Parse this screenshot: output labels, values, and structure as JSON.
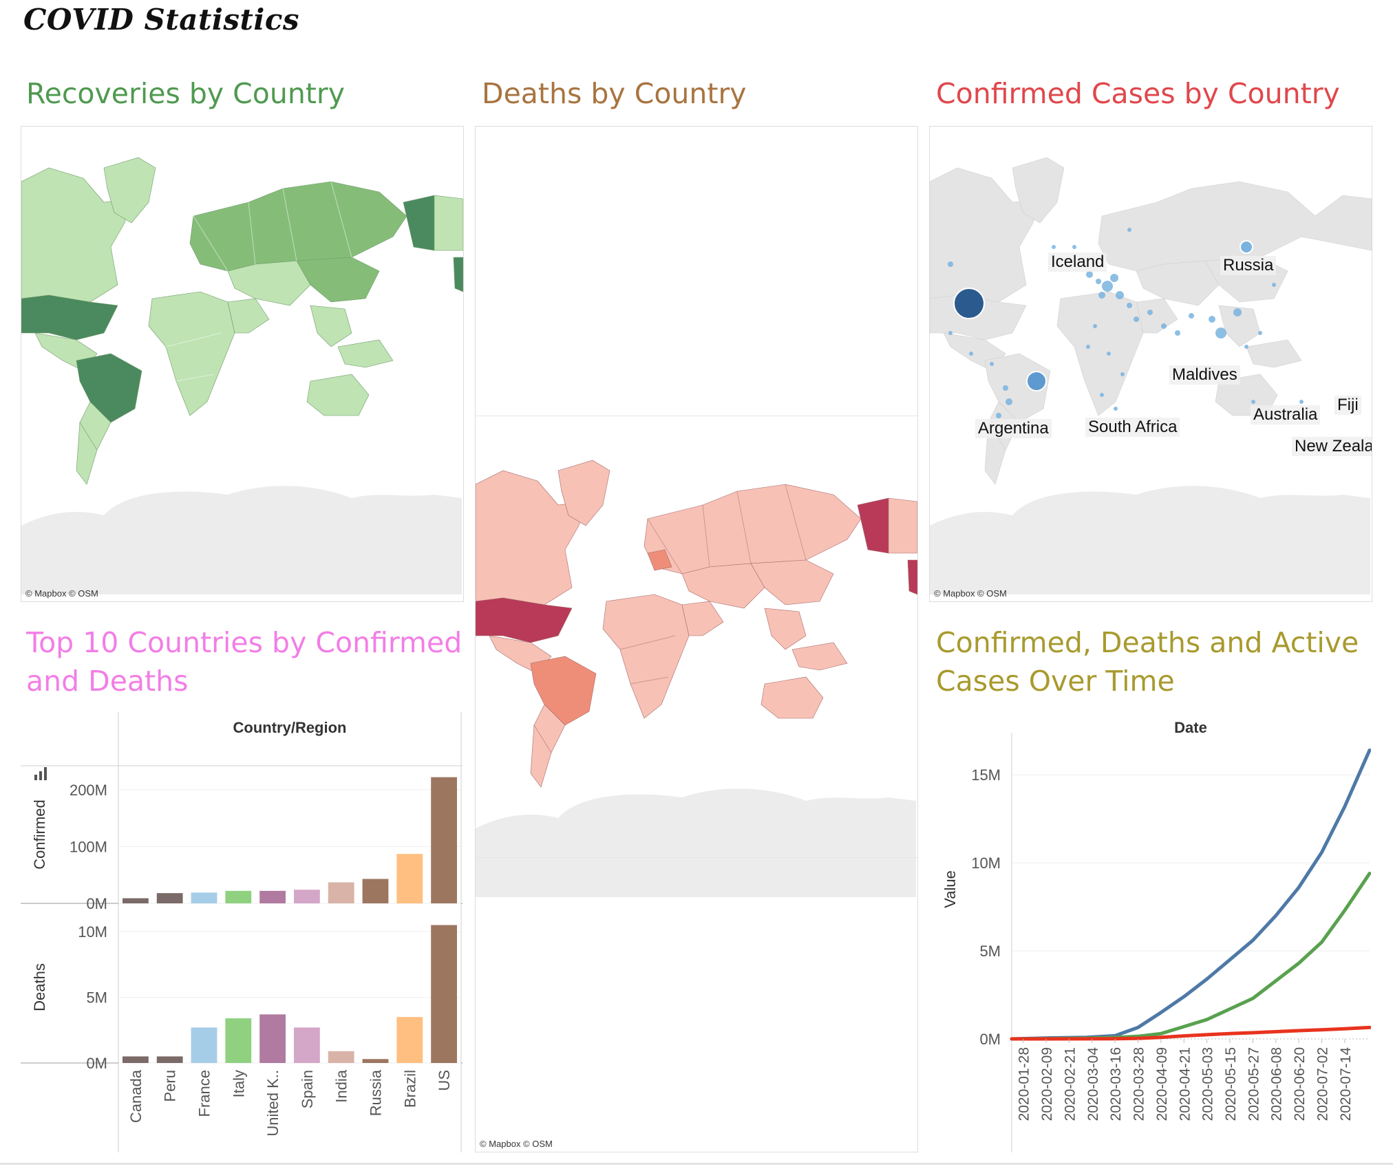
{
  "dashboard": {
    "title": "COVID Statistics"
  },
  "sections": {
    "recoveries": {
      "title": "Recoveries by Country",
      "color": "#4f9a50",
      "attribution": "© Mapbox © OSM",
      "fill_light": "#bfe3b3",
      "fill_mid": "#85bd78",
      "fill_dark": "#4b8a5e"
    },
    "deaths": {
      "title": "Deaths by Country",
      "color": "#a87440",
      "attribution": "© Mapbox © OSM",
      "fill_light": "#f8c1b6",
      "fill_mid": "#ef8e78",
      "fill_dark": "#b83a58"
    },
    "confirmed": {
      "title": "Confirmed Cases by Country",
      "color": "#e0474c",
      "attribution": "© Mapbox © OSM",
      "bubble_color": "#7ab3e0",
      "bubble_dark": "#2a5a8e",
      "labels": [
        "Iceland",
        "Russia",
        "Maldives",
        "Argentina",
        "South Africa",
        "Australia",
        "Fiji",
        "New Zeala"
      ]
    },
    "top10": {
      "title_line1": "Top 10 Countries by Confirmed",
      "title_line2": "and Deaths",
      "color": "#f27ee6"
    },
    "overtime": {
      "title_line1": "Confirmed, Deaths and Active",
      "title_line2": "Cases Over Time",
      "color": "#a89a2e"
    }
  },
  "chart_data": [
    {
      "type": "bar",
      "title": "Top 10 Countries by Confirmed and Deaths",
      "xlabel": "Country/Region",
      "categories": [
        "Canada",
        "Peru",
        "France",
        "Italy",
        "United K..",
        "Spain",
        "India",
        "Russia",
        "Brazil",
        "US"
      ],
      "colors": [
        "#7a6a68",
        "#7a6a68",
        "#a6cde8",
        "#8fd17f",
        "#b07aa1",
        "#d4a6c8",
        "#d9b3a8",
        "#9d7660",
        "#ffbf80",
        "#9d7660"
      ],
      "series": [
        {
          "name": "Confirmed",
          "values": [
            9,
            18,
            19,
            22,
            22,
            24,
            37,
            43,
            87,
            222
          ],
          "ylim": [
            0,
            230
          ],
          "ticks": [
            "200M",
            "100M",
            "0M"
          ],
          "tick_values": [
            200,
            100,
            0
          ]
        },
        {
          "name": "Deaths",
          "values": [
            0.5,
            0.5,
            2.7,
            3.4,
            3.7,
            2.7,
            0.9,
            0.3,
            3.5,
            10.5
          ],
          "ylim": [
            0,
            11
          ],
          "ticks": [
            "10M",
            "5M",
            "0M"
          ],
          "tick_values": [
            10,
            5,
            0
          ]
        }
      ],
      "ylabels": [
        "Confirmed",
        "Deaths"
      ]
    },
    {
      "type": "line",
      "title": "Confirmed, Deaths and Active Cases Over Time",
      "xlabel": "Date",
      "ylabel": "Value",
      "ylim": [
        0,
        17
      ],
      "yticks": [
        "15M",
        "10M",
        "5M",
        "0M"
      ],
      "ytick_values": [
        15,
        10,
        5,
        0
      ],
      "xticks": [
        "2020-01-28",
        "2020-02-09",
        "2020-02-21",
        "2020-03-04",
        "2020-03-16",
        "2020-03-28",
        "2020-04-09",
        "2020-04-21",
        "2020-05-03",
        "2020-05-15",
        "2020-05-27",
        "2020-06-08",
        "2020-06-20",
        "2020-07-02",
        "2020-07-14"
      ],
      "x": [
        "2020-01-22",
        "2020-02-09",
        "2020-03-01",
        "2020-03-16",
        "2020-03-28",
        "2020-04-09",
        "2020-04-21",
        "2020-05-03",
        "2020-05-15",
        "2020-05-27",
        "2020-06-08",
        "2020-06-20",
        "2020-07-02",
        "2020-07-14",
        "2020-07-27"
      ],
      "series": [
        {
          "color": "#4e79a7",
          "values": [
            0,
            0.05,
            0.09,
            0.18,
            0.65,
            1.5,
            2.4,
            3.4,
            4.5,
            5.6,
            7.0,
            8.6,
            10.6,
            13.2,
            16.4
          ]
        },
        {
          "color": "#59a14f",
          "values": [
            0,
            0.01,
            0.04,
            0.08,
            0.15,
            0.3,
            0.7,
            1.1,
            1.7,
            2.3,
            3.3,
            4.3,
            5.5,
            7.3,
            9.4
          ]
        },
        {
          "color": "#e8331e",
          "values": [
            0,
            0.0,
            0.005,
            0.01,
            0.03,
            0.09,
            0.17,
            0.24,
            0.3,
            0.35,
            0.41,
            0.47,
            0.52,
            0.58,
            0.65
          ]
        }
      ]
    }
  ]
}
